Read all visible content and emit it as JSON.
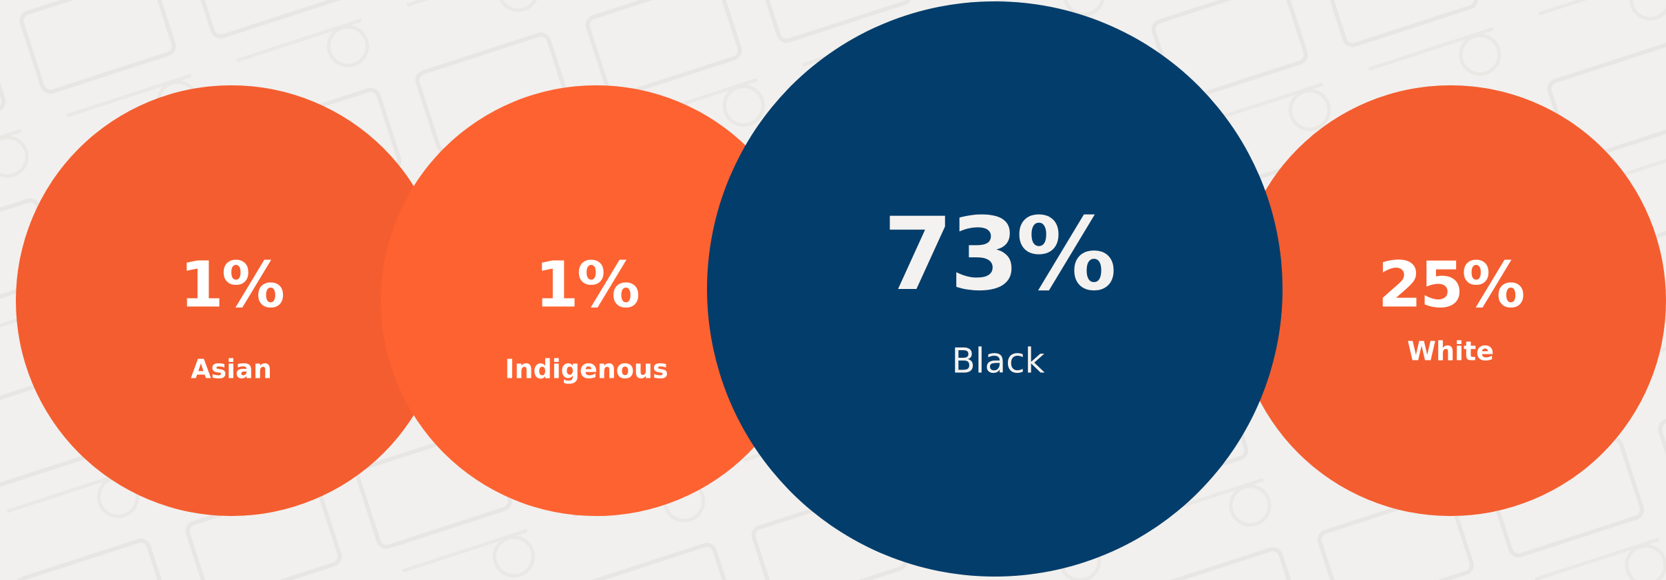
{
  "stats": [
    {
      "value": "1%",
      "label": "Asian"
    },
    {
      "value": "1%",
      "label": "Indigenous"
    },
    {
      "value": "73%",
      "label": "Black"
    },
    {
      "value": "25%",
      "label": "White"
    }
  ]
}
